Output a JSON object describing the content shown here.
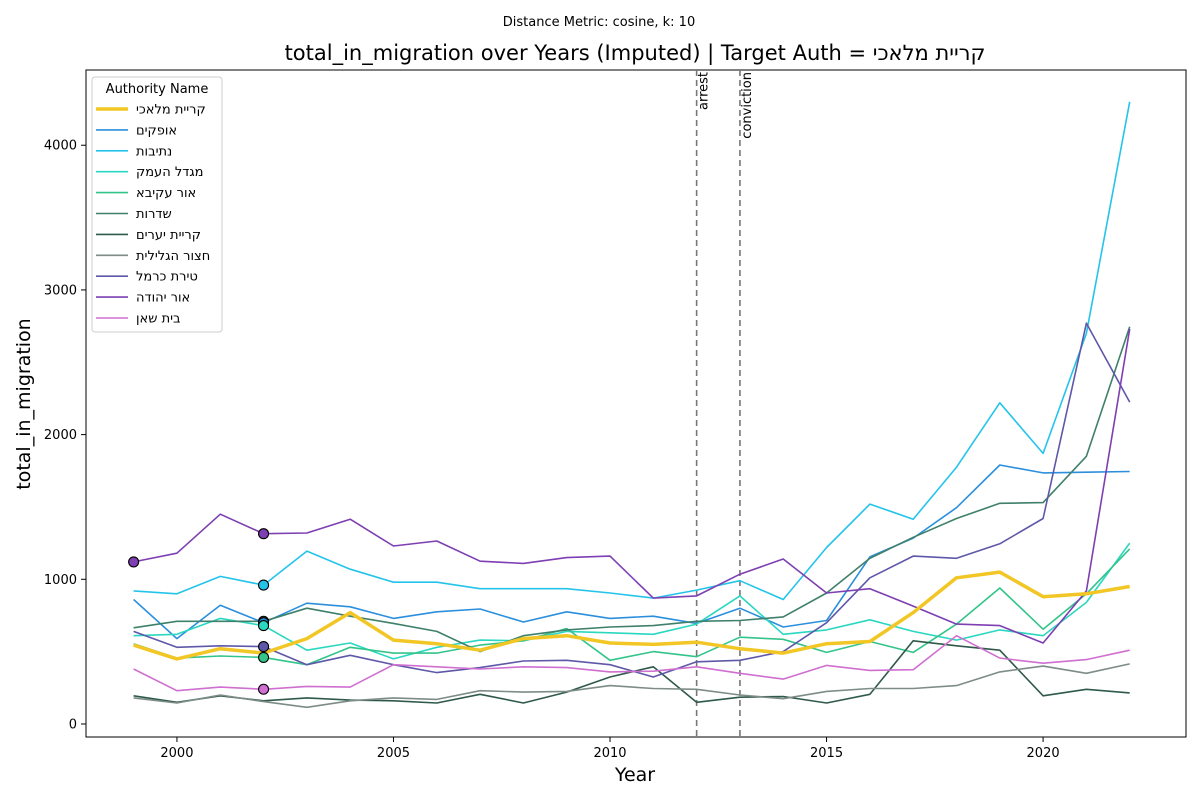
{
  "chart_data": {
    "type": "line",
    "suptitle": "Distance Metric: cosine, k: 10",
    "title": "total_in_migration over Years (Imputed) | Target Auth = קריית מלאכי",
    "xlabel": "Year",
    "ylabel": "total_in_migration",
    "xlim": [
      1997.9,
      2023.3
    ],
    "ylim": [
      -90,
      4520
    ],
    "x_ticks": [
      2000,
      2005,
      2010,
      2015,
      2020
    ],
    "y_ticks": [
      0,
      1000,
      2000,
      3000,
      4000
    ],
    "grid": false,
    "legend": {
      "title": "Authority Name",
      "placement": "upper-left"
    },
    "x": [
      1999,
      2000,
      2001,
      2002,
      2003,
      2004,
      2005,
      2006,
      2007,
      2008,
      2009,
      2010,
      2011,
      2012,
      2013,
      2014,
      2015,
      2016,
      2017,
      2018,
      2019,
      2020,
      2021,
      2022
    ],
    "series": [
      {
        "name": "קריית מלאכי",
        "color": "#f2c624",
        "target": true,
        "values": [
          545,
          450,
          520,
          490,
          590,
          770,
          580,
          555,
          510,
          590,
          610,
          560,
          550,
          565,
          520,
          490,
          555,
          570,
          770,
          1010,
          1050,
          880,
          900,
          950
        ]
      },
      {
        "name": "אופקים",
        "color": "#2b8fdd",
        "values": [
          860,
          590,
          820,
          700,
          835,
          810,
          730,
          775,
          795,
          705,
          775,
          730,
          745,
          695,
          800,
          670,
          715,
          1155,
          1285,
          1495,
          1790,
          1735,
          1740,
          1745
        ]
      },
      {
        "name": "נתיבות",
        "color": "#24c4ea",
        "values": [
          920,
          900,
          1020,
          960,
          1195,
          1070,
          980,
          980,
          935,
          935,
          935,
          905,
          870,
          925,
          990,
          860,
          1220,
          1520,
          1415,
          1775,
          2220,
          1870,
          2700,
          4300
        ]
      },
      {
        "name": "מגדל העמק",
        "color": "#2ad7c0",
        "values": [
          610,
          620,
          730,
          680,
          510,
          560,
          450,
          530,
          580,
          575,
          640,
          630,
          620,
          690,
          885,
          620,
          650,
          720,
          640,
          580,
          650,
          610,
          840,
          1250
        ]
      },
      {
        "name": "אור עקיבא",
        "color": "#33c48a",
        "values": [
          555,
          455,
          470,
          460,
          410,
          530,
          490,
          490,
          545,
          575,
          660,
          440,
          500,
          465,
          600,
          585,
          495,
          570,
          495,
          690,
          940,
          655,
          900,
          1210
        ]
      },
      {
        "name": "שדרות",
        "color": "#3f806b",
        "values": [
          665,
          710,
          710,
          710,
          800,
          745,
          695,
          640,
          500,
          610,
          650,
          670,
          680,
          710,
          715,
          740,
          905,
          1145,
          1290,
          1420,
          1525,
          1530,
          1850,
          2745
        ]
      },
      {
        "name": "קריית יערים",
        "color": "#2f5a4b",
        "values": [
          195,
          150,
          195,
          160,
          180,
          165,
          160,
          145,
          205,
          145,
          220,
          325,
          395,
          150,
          185,
          190,
          145,
          205,
          575,
          540,
          510,
          195,
          240,
          215
        ]
      },
      {
        "name": "חצור הגלילית",
        "color": "#7e8c87",
        "values": [
          180,
          145,
          200,
          155,
          115,
          160,
          180,
          170,
          230,
          220,
          225,
          265,
          245,
          240,
          200,
          175,
          225,
          245,
          245,
          265,
          360,
          400,
          350,
          415
        ]
      },
      {
        "name": "טירת כרמל",
        "color": "#5e58a8",
        "values": [
          640,
          530,
          540,
          535,
          410,
          475,
          410,
          355,
          390,
          435,
          440,
          410,
          325,
          430,
          440,
          500,
          700,
          1010,
          1160,
          1145,
          1245,
          1420,
          2770,
          2225
        ]
      },
      {
        "name": "אור יהודה",
        "color": "#7d3fb2",
        "values": [
          1120,
          1180,
          1450,
          1315,
          1320,
          1415,
          1230,
          1265,
          1125,
          1110,
          1150,
          1160,
          870,
          885,
          1035,
          1140,
          905,
          935,
          815,
          690,
          680,
          560,
          920,
          2730
        ]
      },
      {
        "name": "בית שאן",
        "color": "#cf6fd0",
        "values": [
          380,
          230,
          255,
          240,
          260,
          255,
          410,
          395,
          380,
          395,
          390,
          360,
          365,
          395,
          350,
          310,
          405,
          370,
          375,
          610,
          455,
          420,
          445,
          510
        ]
      }
    ],
    "markers_year": 2002,
    "markers": [
      {
        "series": "אור יהודה",
        "value": 1315
      },
      {
        "series": "נתיבות",
        "value": 960
      },
      {
        "series": "שדרות",
        "value": 710
      },
      {
        "series": "אופקים",
        "value": 700
      },
      {
        "series": "מגדל העמק",
        "value": 680
      },
      {
        "series": "טירת כרמל",
        "value": 535
      },
      {
        "series": "אור עקיבא",
        "value": 460
      },
      {
        "series": "בית שאן",
        "value": 240
      }
    ],
    "first_markers_year": 1999,
    "first_markers": [
      {
        "series": "אור יהודה",
        "value": 1120
      }
    ],
    "annotations": [
      {
        "x": 2012,
        "label": "arrest"
      },
      {
        "x": 2013,
        "label": "conviction"
      }
    ]
  }
}
